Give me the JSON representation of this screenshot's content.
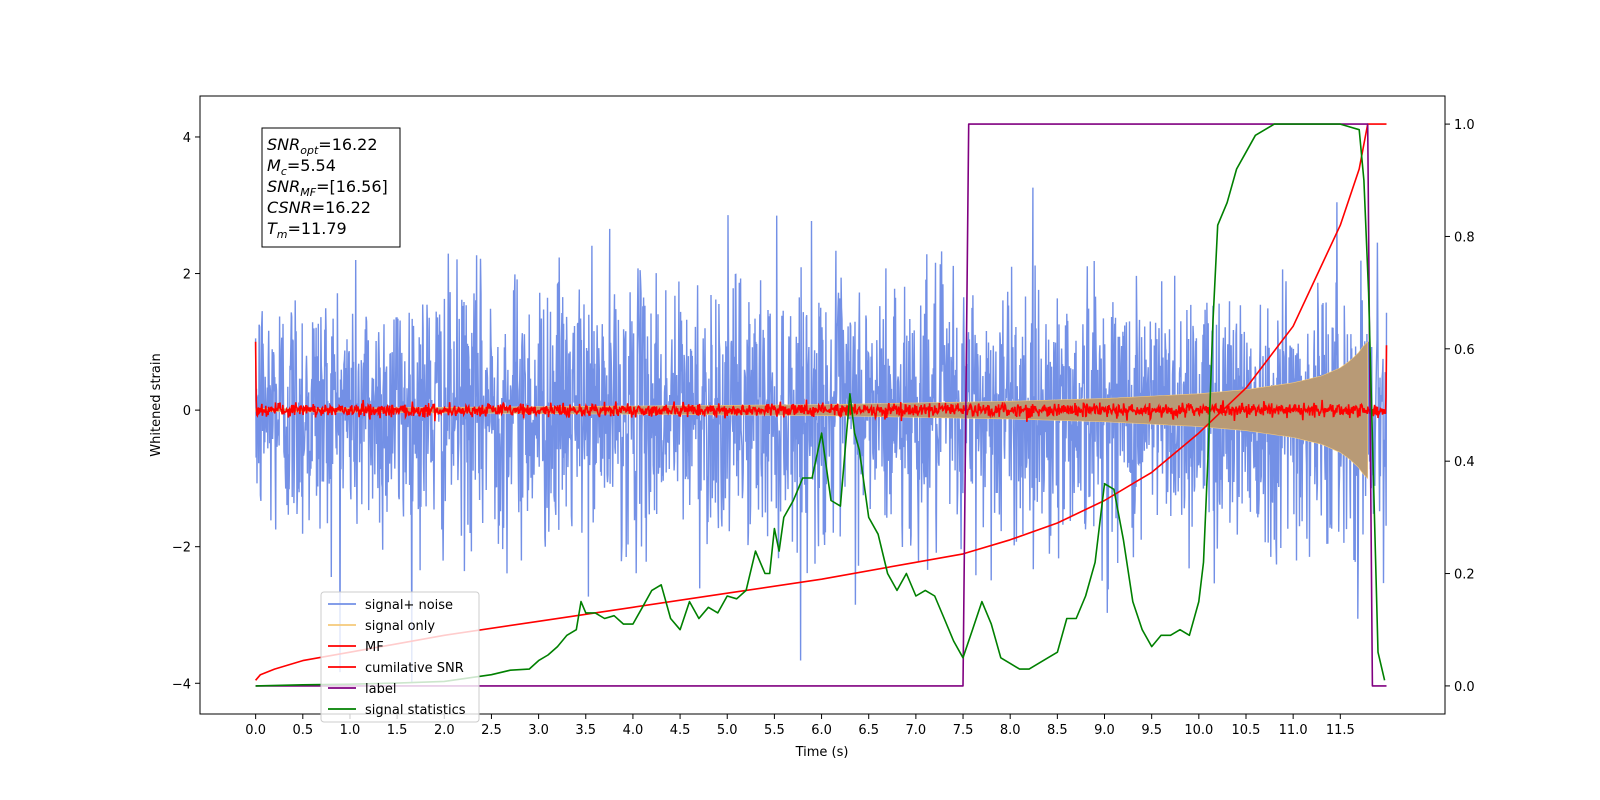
{
  "chart_data": {
    "type": "line",
    "xlabel": "Time (s)",
    "ylabel": "Whitened strain",
    "xlim": [
      -0.59,
      12.61
    ],
    "ylim": [
      -4.45,
      4.6
    ],
    "y2lim": [
      -0.05,
      1.05
    ],
    "xticks": [
      "0.0",
      "0.5",
      "1.0",
      "1.5",
      "2.0",
      "2.5",
      "3.0",
      "3.5",
      "4.0",
      "4.5",
      "5.0",
      "5.5",
      "6.0",
      "6.5",
      "7.0",
      "7.5",
      "8.0",
      "8.5",
      "9.0",
      "9.5",
      "10.0",
      "10.5",
      "11.0",
      "11.5"
    ],
    "yticks": [
      "4",
      "2",
      "0",
      "−2",
      "−4"
    ],
    "y2ticks": [
      "1.0",
      "0.8",
      "0.6",
      "0.4",
      "0.2",
      "0.0"
    ],
    "grid": false,
    "legend_position": "lower-left",
    "stats_box": {
      "position": "top-left",
      "lines": [
        {
          "sym": "SNR",
          "sub": "opt",
          "value": "=16.22"
        },
        {
          "sym": "M",
          "sub": "c",
          "value": "=5.54"
        },
        {
          "sym": "SNR",
          "sub": "MF",
          "value": "=[16.56]"
        },
        {
          "sym": "CSNR",
          "sub": "",
          "value": "=16.22"
        },
        {
          "sym": "T",
          "sub": "m",
          "value": "=11.79"
        }
      ]
    },
    "series": [
      {
        "name": "signal+ noise",
        "axis": "left",
        "color": "#7390e6",
        "note": "whitened noise, approx. ±2 with spikes to ±4",
        "amplitude_std": 0.95,
        "x_range": [
          0.0,
          11.99
        ]
      },
      {
        "name": "signal only",
        "axis": "left",
        "color": "#f5c97a",
        "fill_color": "#b89a76",
        "note": "chirp envelope growing to ~1.0 near 11.8",
        "envelope": {
          "x": [
            0.0,
            2.0,
            4.0,
            6.0,
            8.0,
            9.0,
            10.0,
            10.5,
            11.0,
            11.3,
            11.5,
            11.6,
            11.7,
            11.75,
            11.79
          ],
          "y": [
            0.02,
            0.04,
            0.06,
            0.08,
            0.13,
            0.17,
            0.24,
            0.3,
            0.4,
            0.5,
            0.62,
            0.72,
            0.85,
            0.95,
            1.0
          ]
        }
      },
      {
        "name": "MF",
        "axis": "left",
        "color": "#ff0000",
        "note": "matched filter output near zero",
        "amplitude_std": 0.05,
        "start_value": 1.0,
        "end_value": 0.95,
        "x_range": [
          0.0,
          11.99
        ]
      },
      {
        "name": "cumilative SNR",
        "axis": "right",
        "color": "#ff0000",
        "x": [
          0.0,
          0.05,
          0.2,
          0.5,
          1.0,
          1.5,
          2.0,
          3.0,
          4.0,
          5.0,
          6.0,
          7.0,
          7.5,
          8.0,
          8.5,
          9.0,
          9.5,
          10.0,
          10.5,
          11.0,
          11.5,
          11.7,
          11.79,
          11.99
        ],
        "y": [
          0.01,
          0.02,
          0.03,
          0.045,
          0.06,
          0.075,
          0.09,
          0.115,
          0.14,
          0.165,
          0.19,
          0.22,
          0.235,
          0.26,
          0.29,
          0.33,
          0.38,
          0.45,
          0.53,
          0.64,
          0.82,
          0.92,
          1.0,
          1.0
        ]
      },
      {
        "name": "label",
        "axis": "right",
        "color": "#800080",
        "x": [
          0.0,
          7.5,
          7.56,
          11.79,
          11.84,
          11.99
        ],
        "y": [
          0.0,
          0.0,
          1.0,
          1.0,
          0.0,
          0.0
        ]
      },
      {
        "name": "signal statistics",
        "axis": "right",
        "color": "#008000",
        "x": [
          0.0,
          0.5,
          1.0,
          1.5,
          2.0,
          2.5,
          2.7,
          2.9,
          3.0,
          3.1,
          3.2,
          3.3,
          3.4,
          3.45,
          3.5,
          3.6,
          3.7,
          3.8,
          3.9,
          4.0,
          4.1,
          4.2,
          4.3,
          4.4,
          4.5,
          4.6,
          4.7,
          4.8,
          4.9,
          5.0,
          5.1,
          5.2,
          5.3,
          5.4,
          5.45,
          5.5,
          5.55,
          5.6,
          5.7,
          5.75,
          5.8,
          5.9,
          6.0,
          6.1,
          6.2,
          6.3,
          6.35,
          6.4,
          6.5,
          6.6,
          6.7,
          6.8,
          6.9,
          7.0,
          7.1,
          7.2,
          7.3,
          7.4,
          7.5,
          7.6,
          7.7,
          7.8,
          7.9,
          8.0,
          8.1,
          8.2,
          8.3,
          8.4,
          8.5,
          8.6,
          8.7,
          8.8,
          8.9,
          9.0,
          9.1,
          9.2,
          9.3,
          9.4,
          9.5,
          9.6,
          9.7,
          9.8,
          9.9,
          10.0,
          10.05,
          10.1,
          10.15,
          10.2,
          10.3,
          10.4,
          10.5,
          10.6,
          10.8,
          11.0,
          11.5,
          11.7,
          11.75,
          11.8,
          11.9,
          11.97
        ],
        "y": [
          0.0,
          0.002,
          0.003,
          0.005,
          0.008,
          0.02,
          0.028,
          0.03,
          0.045,
          0.055,
          0.07,
          0.09,
          0.1,
          0.15,
          0.13,
          0.13,
          0.12,
          0.125,
          0.11,
          0.11,
          0.14,
          0.17,
          0.18,
          0.12,
          0.1,
          0.15,
          0.12,
          0.14,
          0.13,
          0.16,
          0.155,
          0.17,
          0.24,
          0.2,
          0.2,
          0.28,
          0.24,
          0.3,
          0.33,
          0.35,
          0.37,
          0.37,
          0.45,
          0.33,
          0.32,
          0.52,
          0.45,
          0.42,
          0.3,
          0.27,
          0.2,
          0.17,
          0.2,
          0.16,
          0.17,
          0.16,
          0.12,
          0.08,
          0.05,
          0.1,
          0.15,
          0.11,
          0.05,
          0.04,
          0.03,
          0.03,
          0.04,
          0.05,
          0.06,
          0.12,
          0.12,
          0.16,
          0.22,
          0.36,
          0.35,
          0.26,
          0.15,
          0.1,
          0.07,
          0.09,
          0.09,
          0.1,
          0.09,
          0.15,
          0.22,
          0.42,
          0.65,
          0.82,
          0.86,
          0.92,
          0.95,
          0.98,
          1.0,
          1.0,
          1.0,
          0.99,
          0.9,
          0.7,
          0.06,
          0.01
        ]
      }
    ]
  }
}
